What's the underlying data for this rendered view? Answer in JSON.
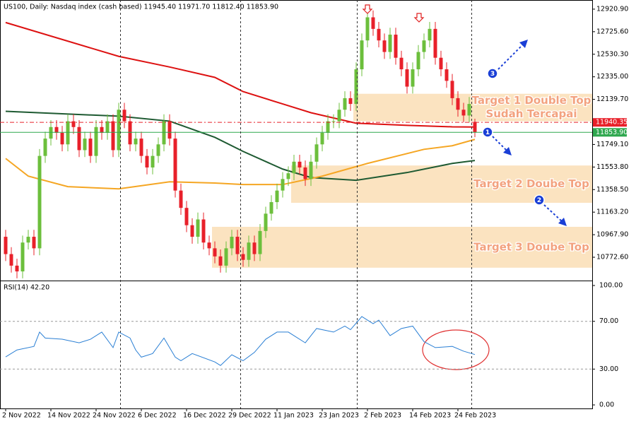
{
  "header": "US100, Daily:  Nasdaq index (cash based)  11945.40 11971.70 11812.40 11853.90",
  "chart_data": [
    {
      "type": "candlestick",
      "categories": [
        "2 Nov 2022",
        null,
        null,
        null,
        null,
        null,
        null,
        null,
        "14 Nov 2022",
        null,
        null,
        null,
        null,
        null,
        null,
        null,
        "24 Nov 2022",
        null,
        null,
        null,
        null,
        null,
        null,
        null,
        "6 Dec 2022",
        null,
        null,
        null,
        null,
        null,
        null,
        null,
        "16 Dec 2022",
        null,
        null,
        null,
        null,
        null,
        null,
        null,
        "29 Dec 2022",
        null,
        null,
        null,
        null,
        null,
        null,
        null,
        "11 Jan 2023",
        null,
        null,
        null,
        null,
        null,
        null,
        null,
        "23 Jan 2023",
        null,
        null,
        null,
        null,
        null,
        null,
        null,
        "2 Feb 2023",
        null,
        null,
        null,
        null,
        null,
        null,
        null,
        "14 Feb 2023",
        null,
        null,
        null,
        null,
        null,
        null,
        null,
        "24 Feb 2023",
        null,
        null,
        null
      ],
      "ohlc": [
        [
          10950,
          11010,
          10740,
          10800
        ],
        [
          10800,
          10860,
          10640,
          10700
        ],
        [
          10700,
          10760,
          10590,
          10650
        ],
        [
          10650,
          10960,
          10590,
          10900
        ],
        [
          10900,
          11010,
          10840,
          10950
        ],
        [
          10950,
          11010,
          10790,
          10850
        ],
        [
          10850,
          11710,
          10790,
          11650
        ],
        [
          11650,
          11860,
          11590,
          11800
        ],
        [
          11800,
          11960,
          11740,
          11900
        ],
        [
          11900,
          11960,
          11790,
          11850
        ],
        [
          11850,
          11910,
          11690,
          11750
        ],
        [
          11750,
          12010,
          11690,
          11950
        ],
        [
          11950,
          12010,
          11840,
          11900
        ],
        [
          11900,
          11960,
          11640,
          11700
        ],
        [
          11700,
          11860,
          11640,
          11800
        ],
        [
          11800,
          11860,
          11590,
          11650
        ],
        [
          11650,
          11960,
          11590,
          11900
        ],
        [
          11900,
          11960,
          11790,
          11850
        ],
        [
          11850,
          12010,
          11790,
          11950
        ],
        [
          11950,
          12010,
          11640,
          11700
        ],
        [
          11700,
          12110,
          11640,
          12050
        ],
        [
          12050,
          12110,
          11890,
          11950
        ],
        [
          11950,
          12010,
          11690,
          11750
        ],
        [
          11750,
          11860,
          11690,
          11800
        ],
        [
          11800,
          11860,
          11590,
          11650
        ],
        [
          11650,
          11710,
          11490,
          11550
        ],
        [
          11550,
          11710,
          11490,
          11650
        ],
        [
          11650,
          11810,
          11590,
          11750
        ],
        [
          11750,
          12010,
          11690,
          11950
        ],
        [
          11950,
          12010,
          11740,
          11800
        ],
        [
          11800,
          11860,
          11290,
          11350
        ],
        [
          11350,
          11410,
          11140,
          11200
        ],
        [
          11200,
          11260,
          10990,
          11050
        ],
        [
          11050,
          11110,
          10890,
          10950
        ],
        [
          10950,
          11160,
          10890,
          11100
        ],
        [
          11100,
          11160,
          10840,
          10900
        ],
        [
          10900,
          10960,
          10790,
          10850
        ],
        [
          10850,
          10910,
          10720,
          10780
        ],
        [
          10780,
          10840,
          10640,
          10700
        ],
        [
          10700,
          10910,
          10640,
          10850
        ],
        [
          10850,
          11010,
          10790,
          10950
        ],
        [
          10950,
          11010,
          10740,
          10800
        ],
        [
          10800,
          10860,
          10690,
          10750
        ],
        [
          10750,
          10960,
          10690,
          10900
        ],
        [
          10900,
          10960,
          10740,
          10800
        ],
        [
          10800,
          11060,
          10740,
          11000
        ],
        [
          11000,
          11210,
          10940,
          11150
        ],
        [
          11150,
          11310,
          11090,
          11250
        ],
        [
          11250,
          11410,
          11190,
          11350
        ],
        [
          11350,
          11510,
          11290,
          11450
        ],
        [
          11450,
          11560,
          11390,
          11500
        ],
        [
          11500,
          11660,
          11440,
          11600
        ],
        [
          11600,
          11660,
          11490,
          11550
        ],
        [
          11550,
          11610,
          11390,
          11450
        ],
        [
          11450,
          11660,
          11390,
          11600
        ],
        [
          11600,
          11810,
          11540,
          11750
        ],
        [
          11750,
          11910,
          11690,
          11850
        ],
        [
          11850,
          12010,
          11790,
          11950
        ],
        [
          11950,
          12010,
          11890,
          11950
        ],
        [
          11950,
          12110,
          11890,
          12050
        ],
        [
          12050,
          12210,
          11990,
          12150
        ],
        [
          12150,
          12210,
          12040,
          12100
        ],
        [
          12100,
          12460,
          12040,
          12400
        ],
        [
          12400,
          12710,
          12340,
          12650
        ],
        [
          12650,
          12910,
          12590,
          12850
        ],
        [
          12850,
          12910,
          12690,
          12750
        ],
        [
          12750,
          12810,
          12590,
          12650
        ],
        [
          12650,
          12710,
          12490,
          12550
        ],
        [
          12550,
          12760,
          12490,
          12700
        ],
        [
          12700,
          12760,
          12440,
          12500
        ],
        [
          12500,
          12560,
          12340,
          12400
        ],
        [
          12400,
          12460,
          12190,
          12250
        ],
        [
          12250,
          12460,
          12190,
          12400
        ],
        [
          12400,
          12610,
          12340,
          12550
        ],
        [
          12550,
          12710,
          12490,
          12650
        ],
        [
          12650,
          12810,
          12590,
          12750
        ],
        [
          12750,
          12810,
          12440,
          12500
        ],
        [
          12500,
          12560,
          12340,
          12400
        ],
        [
          12400,
          12460,
          12240,
          12300
        ],
        [
          12300,
          12360,
          12090,
          12150
        ],
        [
          12150,
          12210,
          11990,
          12050
        ],
        [
          12050,
          12110,
          11940,
          12000
        ],
        [
          12000,
          12160,
          11940,
          12100
        ],
        [
          11945.4,
          11971.7,
          11812.4,
          11853.9
        ]
      ],
      "up_color": "#6cbf3c",
      "down_color": "#e8202a",
      "ylim": [
        10577,
        13000
      ],
      "yticks": [
        {
          "value": 12920.9,
          "label": "12920.90"
        },
        {
          "value": 12725.6,
          "label": "12725.60"
        },
        {
          "value": 12530.3,
          "label": "12530.30"
        },
        {
          "value": 12335,
          "label": "12335.00"
        },
        {
          "value": 12139.7,
          "label": "12139.70"
        },
        {
          "value": 11749.1,
          "label": "11749.10"
        },
        {
          "value": 11553.8,
          "label": "11553.80"
        },
        {
          "value": 11358.5,
          "label": "11358.50"
        },
        {
          "value": 11163.2,
          "label": "11163.20"
        },
        {
          "value": 10967.9,
          "label": "10967.90"
        },
        {
          "value": 10772.6,
          "label": "10772.60"
        }
      ],
      "lines": [
        {
          "color": "#dd1111",
          "x": [
            0,
            20,
            29,
            37,
            42,
            49,
            54,
            62,
            71,
            79,
            83
          ],
          "values": [
            12805,
            12512,
            12420,
            12330,
            12207,
            12100,
            12024,
            11933,
            11915,
            11902,
            11900
          ]
        },
        {
          "color": "#1e5a32",
          "x": [
            0,
            20,
            29,
            37,
            42,
            49,
            54,
            62,
            71,
            79,
            83
          ],
          "values": [
            12036,
            11994,
            11951,
            11811,
            11689,
            11536,
            11463,
            11439,
            11506,
            11585,
            11610
          ]
        },
        {
          "color": "#f5a623",
          "x": [
            0,
            4,
            11,
            20,
            29,
            37,
            42,
            49,
            56,
            64,
            74,
            79,
            83
          ],
          "values": [
            11628,
            11475,
            11384,
            11365,
            11426,
            11415,
            11402,
            11402,
            11475,
            11585,
            11707,
            11738,
            11793
          ]
        }
      ],
      "levels": [
        {
          "price": 11940.35,
          "color": "#e8202a",
          "dash": true
        },
        {
          "price": {
            "value": 11853.9,
            "label": "11853.90"
          },
          "color": "#2fa84f",
          "dash": false
        }
      ],
      "zones": [
        {
          "x0": 62,
          "top": 12188,
          "bottom": 11950,
          "label": [
            "Target 1 Double Top",
            "Sudah Tercapai"
          ]
        },
        {
          "x0": 51,
          "top": 11567,
          "bottom": 11244,
          "label": [
            "Target 2 Doube Top"
          ]
        },
        {
          "x0": 37,
          "top": 11036,
          "bottom": 10682,
          "label": [
            "Target 3 Doube Top"
          ]
        }
      ],
      "annotations": [
        "1",
        "2",
        "3"
      ]
    },
    {
      "type": "line",
      "title": "RSI(14) 42.20",
      "color": "#2a7fd4",
      "x": [
        0,
        2,
        5,
        6,
        7,
        10,
        13,
        15,
        17,
        19,
        20,
        22,
        23,
        24,
        26,
        28,
        30,
        31,
        33,
        37,
        38,
        40,
        42,
        44,
        46,
        48,
        50,
        53,
        55,
        58,
        60,
        61,
        63,
        65,
        66,
        68,
        70,
        72,
        74,
        76,
        79,
        81,
        83
      ],
      "values": [
        40.2,
        46,
        49,
        61,
        56,
        55,
        52,
        55,
        61,
        48,
        61,
        56,
        46,
        40,
        43,
        56,
        40,
        37,
        43,
        36,
        33,
        42,
        37,
        44,
        55,
        61,
        61,
        52,
        64,
        61,
        66,
        63,
        74,
        68,
        71,
        58,
        64,
        66,
        53,
        48,
        49,
        45,
        42.2
      ],
      "ylim": [
        0,
        100
      ],
      "yticks": [
        {
          "value": 100,
          "label": "100.00"
        },
        {
          "value": 70,
          "label": "70.00"
        },
        {
          "value": 30,
          "label": "30.00"
        },
        {
          "value": 0,
          "label": "0.00"
        }
      ],
      "levels": [
        70,
        30
      ]
    }
  ]
}
